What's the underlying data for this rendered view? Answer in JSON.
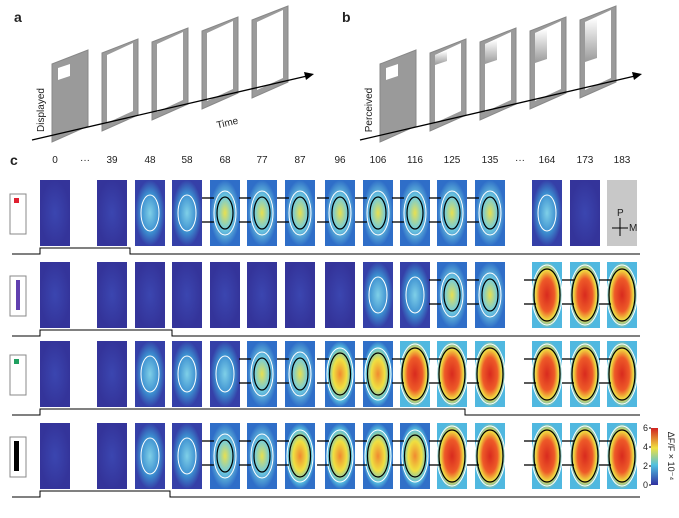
{
  "panels": {
    "a": {
      "label": "a",
      "axis_label": "Displayed",
      "time_label": "Time"
    },
    "b": {
      "label": "b",
      "axis_label": "Perceived"
    },
    "c": {
      "label": "c",
      "frames": [
        "0",
        "···",
        "39",
        "48",
        "58",
        "68",
        "77",
        "87",
        "96",
        "106",
        "116",
        "125",
        "135",
        "···",
        "164",
        "173",
        "183"
      ],
      "orientation": {
        "p": "P",
        "m": "M"
      },
      "colorbar": {
        "label": "ΔF/F × 10⁻⁴",
        "ticks": [
          6,
          4,
          2,
          0
        ]
      }
    }
  }
}
